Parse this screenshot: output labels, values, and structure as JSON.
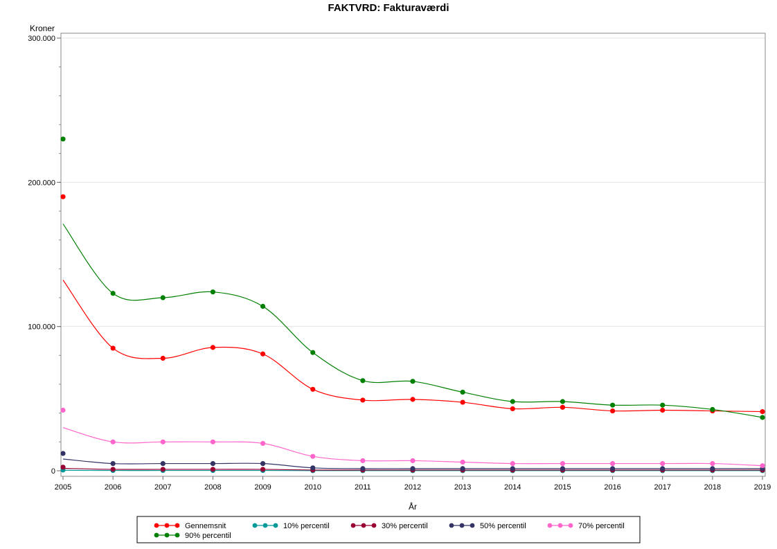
{
  "chart_data": {
    "type": "line",
    "title": "FAKTVRD: Fakturaværdi",
    "xlabel": "År",
    "ylabel": "Kroner",
    "x": [
      2005,
      2006,
      2007,
      2008,
      2009,
      2010,
      2011,
      2012,
      2013,
      2014,
      2015,
      2016,
      2017,
      2018,
      2019
    ],
    "xlim": [
      2005,
      2019
    ],
    "ylim": [
      0,
      300000
    ],
    "y_ticks": [
      0,
      100000,
      200000,
      300000
    ],
    "y_tick_labels": [
      "0",
      "100.000",
      "200.000",
      "300.000"
    ],
    "grid": true,
    "legend_position": "bottom",
    "series": [
      {
        "name": "Gennemsnit",
        "color": "#ff0000",
        "marker": "#ff0000",
        "values": [
          190000,
          85000,
          78000,
          85500,
          81000,
          56500,
          49000,
          49500,
          47500,
          43000,
          44000,
          41500,
          42000,
          41500,
          41000
        ]
      },
      {
        "name": "10% percentil",
        "color": "#009999",
        "marker": "#009999",
        "values": [
          500,
          200,
          200,
          200,
          200,
          100,
          100,
          100,
          100,
          100,
          100,
          100,
          100,
          100,
          100
        ]
      },
      {
        "name": "30% percentil",
        "color": "#990033",
        "marker": "#990033",
        "values": [
          2500,
          1000,
          1000,
          1000,
          1000,
          500,
          500,
          500,
          500,
          500,
          500,
          500,
          500,
          500,
          500
        ]
      },
      {
        "name": "50% percentil",
        "color": "#333366",
        "marker": "#333366",
        "values": [
          12000,
          5000,
          5000,
          5000,
          5000,
          2000,
          1500,
          1500,
          1500,
          1500,
          1500,
          1500,
          1500,
          1500,
          1500
        ]
      },
      {
        "name": "70% percentil",
        "color": "#ff66cc",
        "marker": "#ff66cc",
        "values": [
          42000,
          20000,
          20000,
          20000,
          19000,
          10000,
          7000,
          7000,
          6000,
          5000,
          5000,
          5000,
          5000,
          5000,
          3500
        ]
      },
      {
        "name": "90% percentil",
        "color": "#008000",
        "marker": "#008000",
        "values": [
          230000,
          123000,
          120000,
          124000,
          114000,
          82000,
          62500,
          62000,
          54500,
          48000,
          48000,
          45500,
          45500,
          42500,
          37000
        ]
      }
    ]
  }
}
